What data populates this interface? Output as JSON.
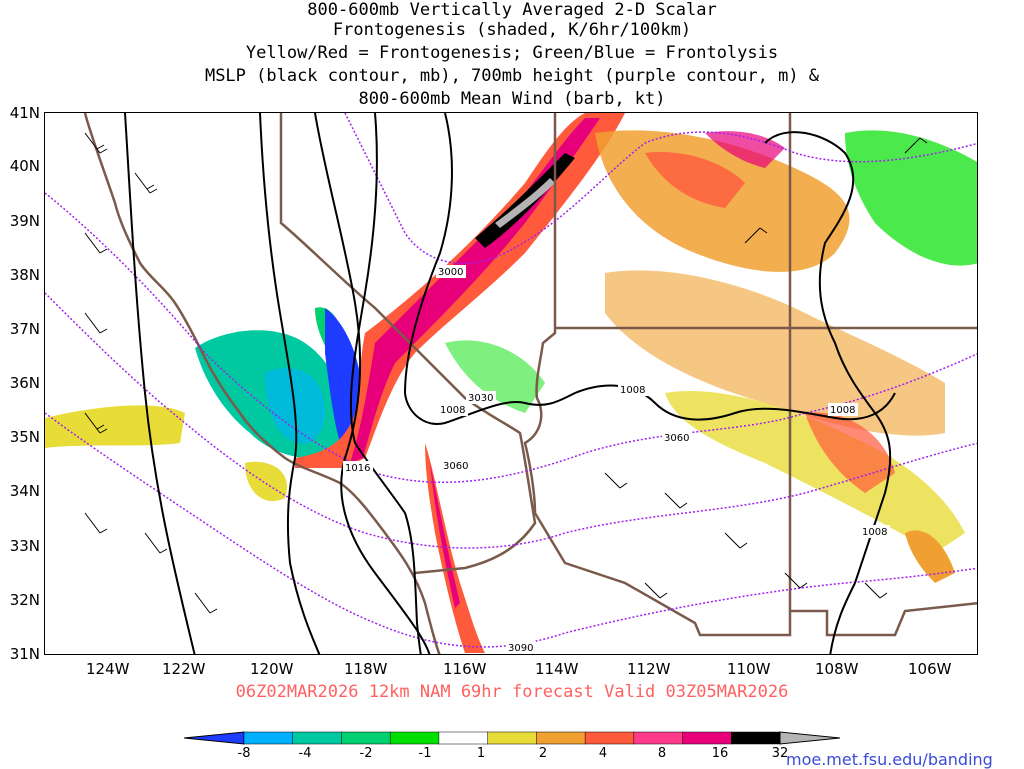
{
  "title": {
    "line1": "800-600mb Vertically Averaged 2-D Scalar",
    "line2": "Frontogenesis (shaded, K/6hr/100km)",
    "line3": "Yellow/Red = Frontogenesis;  Green/Blue = Frontolysis",
    "line4": "MSLP (black contour, mb), 700mb height (purple contour, m) &",
    "line5": "800-600mb Mean Wind (barb, kt)"
  },
  "latitude_labels": [
    "41N",
    "40N",
    "39N",
    "38N",
    "37N",
    "36N",
    "35N",
    "34N",
    "33N",
    "32N",
    "31N"
  ],
  "longitude_labels": [
    "124W",
    "122W",
    "120W",
    "118W",
    "116W",
    "114W",
    "112W",
    "110W",
    "108W",
    "106W"
  ],
  "contour_labels": {
    "mslp": [
      "1016",
      "1008",
      "1008",
      "1008",
      "1008"
    ],
    "height": [
      "3000",
      "3030",
      "3060",
      "3060",
      "3090"
    ]
  },
  "footer": "06Z02MAR2026 12km NAM 69hr forecast Valid 03Z05MAR2026",
  "colorbar": {
    "labels": [
      "-8",
      "-4",
      "-2",
      "-1",
      "1",
      "2",
      "4",
      "8",
      "16",
      "32"
    ],
    "colors": [
      "#1e3cff",
      "#00b0ff",
      "#00c8a0",
      "#00d070",
      "#00e000",
      "#ffffff",
      "#e8dc38",
      "#f0a030",
      "#ff5a3c",
      "#ff3c8c",
      "#e8007a",
      "#000000",
      "#b4b4b4"
    ]
  },
  "credit": "moe.met.fsu.edu/banding",
  "colors": {
    "state_border": "#7a5a4a",
    "mslp": "#000000",
    "height": "#a020f0",
    "footer_text": "#ff6060",
    "credit_text": "#3a4bd8"
  }
}
